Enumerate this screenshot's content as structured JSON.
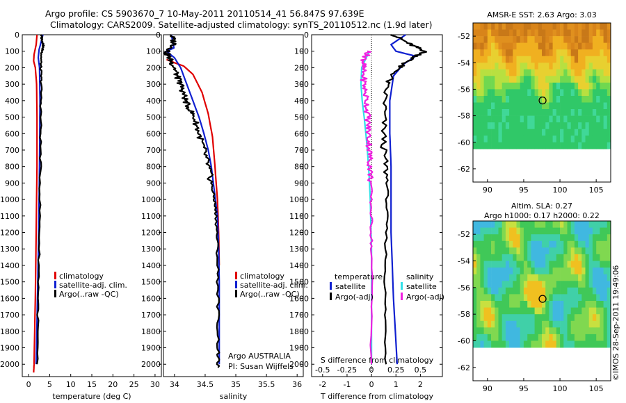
{
  "header": {
    "line1": "Argo profile: CS 5903670_7 10-May-2011 20110514_41 56.847S 97.639E",
    "line2": "Climatology: CARS2009. Satellite-adjusted climatology: synTS_20110512.nc (1.9d later)"
  },
  "colors": {
    "climatology": "#e00000",
    "satellite": "#1020d0",
    "argo": "#000000",
    "salinity_sat": "#30e0e8",
    "salinity_argo": "#f020e0"
  },
  "chart_data": [
    {
      "id": "temperature",
      "type": "line",
      "xlabel": "temperature (deg C)",
      "xlim": [
        -1.5,
        31.5
      ],
      "xticks": [
        0,
        5,
        10,
        15,
        20,
        25,
        30
      ],
      "ylim": [
        0,
        2075
      ],
      "yreversed": true,
      "yticks": [
        0,
        100,
        200,
        300,
        400,
        500,
        600,
        700,
        800,
        900,
        1000,
        1100,
        1200,
        1300,
        1400,
        1500,
        1600,
        1700,
        1800,
        1900,
        2000
      ],
      "legend": [
        "climatology",
        "satellite-adj. clim.",
        "Argo(..raw -QC)"
      ],
      "series": [
        {
          "name": "climatology",
          "color": "#e00000",
          "points": [
            [
              2.0,
              0
            ],
            [
              1.8,
              60
            ],
            [
              1.3,
              120
            ],
            [
              1.2,
              160
            ],
            [
              1.6,
              200
            ],
            [
              1.9,
              300
            ],
            [
              2.0,
              500
            ],
            [
              2.0,
              800
            ],
            [
              1.8,
              1200
            ],
            [
              1.6,
              1600
            ],
            [
              1.3,
              2000
            ],
            [
              1.2,
              2050
            ]
          ]
        },
        {
          "name": "satellite-adj. clim.",
          "color": "#1020d0",
          "points": [
            [
              3.4,
              0
            ],
            [
              3.0,
              40
            ],
            [
              2.5,
              90
            ],
            [
              2.3,
              140
            ],
            [
              2.6,
              200
            ],
            [
              2.7,
              400
            ],
            [
              2.6,
              800
            ],
            [
              2.4,
              1200
            ],
            [
              2.1,
              1600
            ],
            [
              1.8,
              2000
            ]
          ]
        },
        {
          "name": "Argo(..raw -QC)",
          "color": "#000000",
          "points": [
            [
              3.0,
              0
            ],
            [
              3.2,
              30
            ],
            [
              3.5,
              60
            ],
            [
              3.3,
              90
            ],
            [
              3.0,
              130
            ],
            [
              2.9,
              200
            ],
            [
              3.0,
              300
            ],
            [
              2.9,
              500
            ],
            [
              2.8,
              800
            ],
            [
              2.6,
              1200
            ],
            [
              2.3,
              1600
            ],
            [
              2.0,
              2000
            ]
          ]
        }
      ]
    },
    {
      "id": "salinity",
      "type": "line",
      "xlabel": "salinity",
      "xlim": [
        33.82,
        36.1
      ],
      "xticks": [
        34,
        34.5,
        35,
        35.5,
        36
      ],
      "ylim": [
        0,
        2075
      ],
      "yreversed": true,
      "yticks": [
        0,
        100,
        200,
        300,
        400,
        500,
        600,
        700,
        800,
        900,
        1000,
        1100,
        1200,
        1300,
        1400,
        1500,
        1600,
        1700,
        1800,
        1900,
        2000
      ],
      "legend": [
        "climatology",
        "satellite-adj. clim.",
        "Argo(..raw -QC)"
      ],
      "annotation": [
        "Argo AUSTRALIA",
        "PI: Susan Wijffels"
      ],
      "series": [
        {
          "name": "climatology",
          "color": "#e00000",
          "points": [
            [
              33.87,
              150
            ],
            [
              34.0,
              170
            ],
            [
              34.15,
              190
            ],
            [
              34.3,
              240
            ],
            [
              34.45,
              350
            ],
            [
              34.55,
              480
            ],
            [
              34.62,
              620
            ],
            [
              34.66,
              800
            ],
            [
              34.7,
              1000
            ],
            [
              34.72,
              1200
            ],
            [
              34.73,
              1400
            ]
          ]
        },
        {
          "name": "satellite-adj. clim.",
          "color": "#1020d0",
          "points": [
            [
              33.95,
              0
            ],
            [
              33.99,
              80
            ],
            [
              33.87,
              100
            ],
            [
              34.0,
              140
            ],
            [
              34.1,
              200
            ],
            [
              34.2,
              300
            ],
            [
              34.3,
              400
            ],
            [
              34.4,
              500
            ],
            [
              34.48,
              600
            ],
            [
              34.55,
              700
            ],
            [
              34.6,
              800
            ],
            [
              34.65,
              950
            ],
            [
              34.7,
              1100
            ],
            [
              34.72,
              1300
            ],
            [
              34.73,
              1500
            ],
            [
              34.73,
              1800
            ],
            [
              34.73,
              2000
            ]
          ]
        },
        {
          "name": "Argo(..raw -QC)",
          "color": "#000000",
          "points": [
            [
              33.95,
              0
            ],
            [
              34.0,
              60
            ],
            [
              33.87,
              110
            ],
            [
              33.93,
              150
            ],
            [
              34.0,
              200
            ],
            [
              34.05,
              260
            ],
            [
              34.1,
              300
            ],
            [
              34.15,
              360
            ],
            [
              34.2,
              420
            ],
            [
              34.32,
              500
            ],
            [
              34.4,
              600
            ],
            [
              34.48,
              700
            ],
            [
              34.55,
              800
            ],
            [
              34.6,
              900
            ],
            [
              34.65,
              1000
            ],
            [
              34.68,
              1100
            ],
            [
              34.7,
              1300
            ],
            [
              34.71,
              1600
            ],
            [
              34.71,
              1900
            ],
            [
              34.71,
              2020
            ]
          ]
        }
      ]
    },
    {
      "id": "difference",
      "type": "line",
      "xlabel": "T difference from climatology",
      "xlabel_top": "S difference from climatology",
      "xlim": [
        -2.45,
        2.9
      ],
      "xticks": [
        -2,
        -1,
        0,
        1,
        2
      ],
      "xlim_top": [
        -0.612,
        0.725
      ],
      "xticks_top": [
        -0.5,
        -0.25,
        0,
        0.25,
        0.5
      ],
      "ylim": [
        0,
        2075
      ],
      "yreversed": true,
      "yticks": [
        0,
        100,
        200,
        300,
        400,
        500,
        600,
        700,
        800,
        900,
        1000,
        1100,
        1200,
        1300,
        1400,
        1500,
        1600,
        1700,
        1800,
        1900,
        2000
      ],
      "legend_left_title": "temperature",
      "legend_right_title": "salinity",
      "legend": [
        "satellite",
        "Argo(-adj)",
        "satellite",
        "Argo(-adj)"
      ],
      "series": [
        {
          "name": "temperature satellite",
          "color": "#1020d0",
          "points": [
            [
              1.4,
              0
            ],
            [
              0.8,
              60
            ],
            [
              1.0,
              100
            ],
            [
              1.8,
              130
            ],
            [
              1.3,
              180
            ],
            [
              0.9,
              250
            ],
            [
              0.75,
              400
            ],
            [
              0.75,
              600
            ],
            [
              0.8,
              800
            ],
            [
              0.8,
              1200
            ],
            [
              0.9,
              1600
            ],
            [
              1.05,
              2000
            ]
          ]
        },
        {
          "name": "temperature Argo(-adj)",
          "color": "#000000",
          "points": [
            [
              0.9,
              0
            ],
            [
              1.6,
              60
            ],
            [
              2.2,
              100
            ],
            [
              1.6,
              150
            ],
            [
              1.1,
              200
            ],
            [
              0.6,
              300
            ],
            [
              0.5,
              500
            ],
            [
              0.5,
              700
            ],
            [
              0.65,
              900
            ],
            [
              0.6,
              1200
            ],
            [
              0.55,
              1600
            ],
            [
              0.6,
              2000
            ]
          ]
        },
        {
          "name": "salinity satellite",
          "color": "#30e0e8",
          "points": [
            [
              -0.08,
              100
            ],
            [
              -0.25,
              150
            ],
            [
              -0.4,
              200
            ],
            [
              -0.43,
              300
            ],
            [
              -0.38,
              400
            ],
            [
              -0.3,
              500
            ],
            [
              -0.23,
              600
            ],
            [
              -0.17,
              700
            ],
            [
              -0.12,
              800
            ],
            [
              -0.08,
              900
            ],
            [
              -0.05,
              1000
            ],
            [
              -0.02,
              1200
            ],
            [
              0,
              1300
            ],
            [
              0,
              1800
            ],
            [
              0,
              2000
            ]
          ]
        },
        {
          "name": "salinity Argo(-adj)",
          "color": "#f020e0",
          "points": [
            [
              -0.1,
              100
            ],
            [
              -0.3,
              150
            ],
            [
              -0.35,
              200
            ],
            [
              -0.3,
              300
            ],
            [
              -0.2,
              400
            ],
            [
              -0.15,
              500
            ],
            [
              -0.12,
              600
            ],
            [
              -0.08,
              700
            ],
            [
              -0.05,
              800
            ],
            [
              -0.03,
              900
            ],
            [
              -0.01,
              1100
            ],
            [
              0,
              1300
            ],
            [
              0,
              2000
            ]
          ]
        }
      ]
    },
    {
      "id": "sst_map",
      "type": "heatmap",
      "title": "AMSR-E SST: 2.63 Argo: 3.03",
      "xlim": [
        88,
        107
      ],
      "xticks": [
        90,
        95,
        100,
        105
      ],
      "ylim": [
        -63,
        -51
      ],
      "yticks": [
        -52,
        -54,
        -56,
        -58,
        -60,
        -62
      ],
      "data_extent": {
        "lon": [
          88,
          107
        ],
        "lat": [
          -60,
          -51
        ]
      },
      "marker": {
        "lon": 97.6,
        "lat": -56.85
      }
    },
    {
      "id": "sla_map",
      "type": "heatmap",
      "title": "Altim. SLA: 0.27",
      "subtitle": "Argo h1000: 0.17 h2000: 0.22",
      "xlim": [
        88,
        107
      ],
      "xticks": [
        90,
        95,
        100,
        105
      ],
      "ylim": [
        -63,
        -51
      ],
      "yticks": [
        -52,
        -54,
        -56,
        -58,
        -60,
        -62
      ],
      "data_extent": {
        "lon": [
          88,
          107
        ],
        "lat": [
          -60,
          -51
        ]
      },
      "marker": {
        "lon": 97.6,
        "lat": -56.85
      }
    }
  ],
  "footer": {
    "stamp": "©IMOS 28-Sep-2011 19:49:06"
  }
}
